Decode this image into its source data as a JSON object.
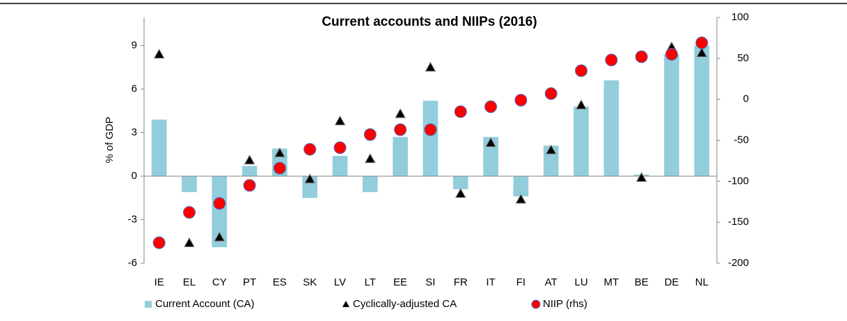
{
  "chart_data": {
    "type": "bar",
    "title": "Current accounts and NIIPs (2016)",
    "y_label": "% of GDP",
    "categories": [
      "IE",
      "EL",
      "CY",
      "PT",
      "ES",
      "SK",
      "LV",
      "LT",
      "EE",
      "SI",
      "FR",
      "IT",
      "FI",
      "AT",
      "LU",
      "MT",
      "BE",
      "DE",
      "NL"
    ],
    "series": [
      {
        "name": "Current Account (CA)",
        "type": "bar",
        "color": "#92cddc",
        "values": [
          3.9,
          -1.1,
          -4.9,
          0.7,
          1.9,
          -1.5,
          1.4,
          -1.1,
          2.7,
          5.2,
          -0.9,
          2.7,
          -1.4,
          2.1,
          4.8,
          6.6,
          0.1,
          8.4,
          9.0
        ]
      },
      {
        "name": "Cyclically-adjusted CA",
        "type": "scatter",
        "marker": "triangle",
        "color": "#000000",
        "values": [
          8.4,
          -4.6,
          -4.2,
          1.1,
          1.6,
          -0.2,
          3.8,
          1.2,
          4.3,
          7.5,
          -1.2,
          2.3,
          -1.6,
          1.8,
          4.9,
          null,
          -0.1,
          8.9,
          8.5
        ]
      },
      {
        "name": "NIIP (rhs)",
        "type": "scatter",
        "marker": "circle",
        "color": "#ff0000",
        "axis": "y2",
        "values": [
          -175,
          -138,
          -127,
          -105,
          -84,
          -61,
          -59,
          -43,
          -37,
          -37,
          -15,
          -9,
          -1,
          7,
          35,
          48,
          52,
          55,
          69
        ]
      }
    ],
    "ylim": [
      -6,
      10.94
    ],
    "yticks": [
      -6,
      -3,
      0,
      3,
      6,
      9
    ],
    "y2lim": [
      -200,
      100
    ],
    "y2ticks": [
      -200,
      -150,
      -100,
      -50,
      0,
      50,
      100
    ],
    "legend": "bottom",
    "grid": false
  }
}
